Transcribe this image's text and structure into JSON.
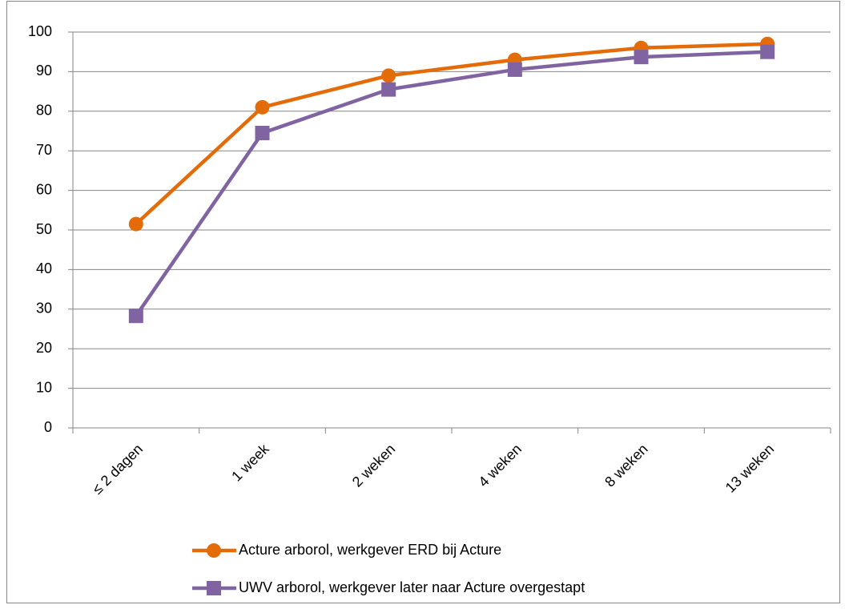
{
  "chart_data": {
    "type": "line",
    "categories": [
      "≤ 2 dagen",
      "1 week",
      "2 weken",
      "4 weken",
      "8 weken",
      "13 weken"
    ],
    "series": [
      {
        "name": "Acture arborol, werkgever ERD bij Acture",
        "color": "#e36c09",
        "marker": "circle",
        "values": [
          51.5,
          81,
          89,
          93,
          96,
          97
        ]
      },
      {
        "name": "UWV arborol, werkgever later naar Acture overgestapt",
        "color": "#8064a2",
        "marker": "square",
        "values": [
          28.3,
          74.5,
          85.5,
          90.5,
          93.7,
          95
        ]
      }
    ],
    "ylim": [
      0,
      100
    ],
    "yticks": [
      0,
      10,
      20,
      30,
      40,
      50,
      60,
      70,
      80,
      90,
      100
    ],
    "grid": true,
    "legend": "bottom"
  }
}
